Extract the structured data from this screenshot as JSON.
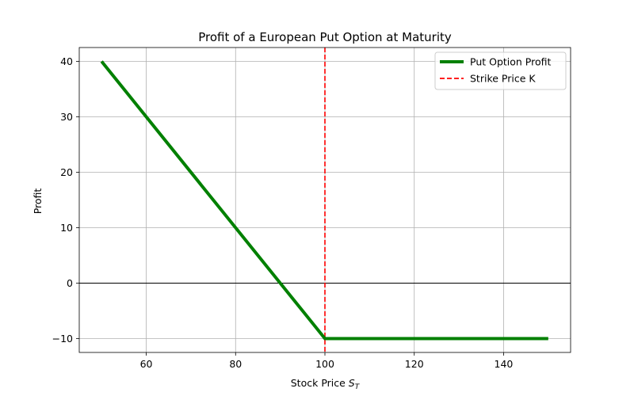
{
  "chart_data": {
    "type": "line",
    "title": "Profit of a European Put Option at Maturity",
    "xlabel_main": "Stock Price ",
    "xlabel_symbol": "S",
    "xlabel_subscript": "T",
    "ylabel": "Profit",
    "xlim": [
      45,
      155
    ],
    "ylim": [
      -12.5,
      42.5
    ],
    "xticks": [
      60,
      80,
      100,
      120,
      140
    ],
    "yticks": [
      -10,
      0,
      10,
      20,
      30,
      40
    ],
    "ytick_labels": [
      "−10",
      "0",
      "10",
      "20",
      "30",
      "40"
    ],
    "grid": true,
    "legend_position": "top-right",
    "series": [
      {
        "name": "Put Option Profit",
        "color": "#008000",
        "style": "solid",
        "x": [
          50,
          100,
          150
        ],
        "y": [
          40,
          -10,
          -10
        ]
      }
    ],
    "vlines": [
      {
        "name": "Strike Price K",
        "x": 100,
        "color": "#ff0000",
        "style": "dashed"
      }
    ],
    "hlines": [
      {
        "y": 0,
        "color": "#000000"
      }
    ]
  }
}
